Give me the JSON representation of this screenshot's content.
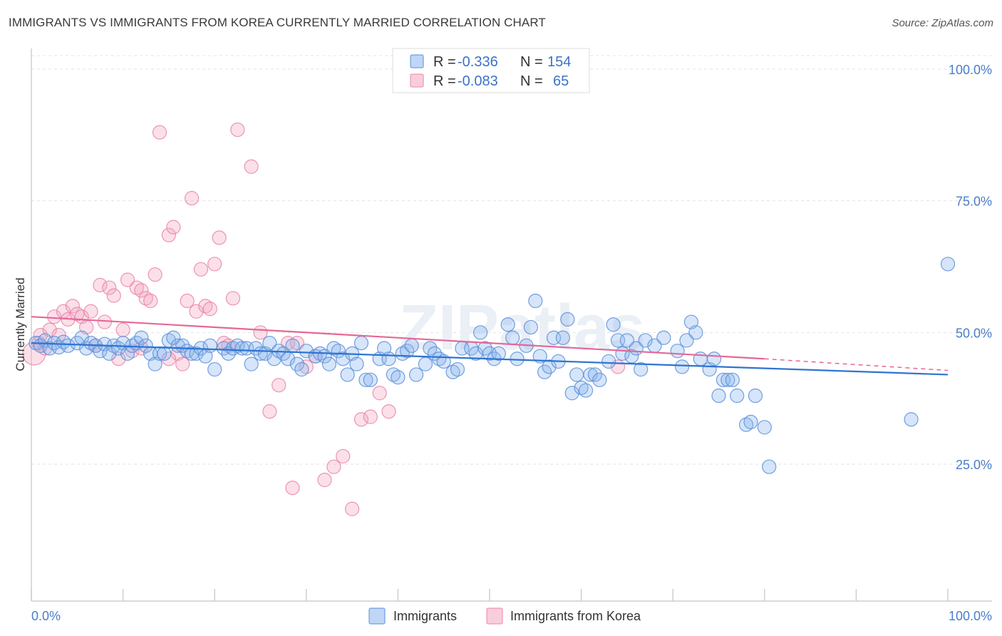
{
  "header": {
    "title": "IMMIGRANTS VS IMMIGRANTS FROM KOREA CURRENTLY MARRIED CORRELATION CHART",
    "source": "Source: ZipAtlas.com"
  },
  "chart_data": {
    "type": "scatter",
    "title": "IMMIGRANTS VS IMMIGRANTS FROM KOREA CURRENTLY MARRIED CORRELATION CHART",
    "xlabel": "",
    "ylabel": "Currently Married",
    "xlim": [
      0,
      100
    ],
    "ylim": [
      0,
      105
    ],
    "x_tick_labels": [
      "0.0%",
      "100.0%"
    ],
    "y_ticks": [
      25,
      50,
      75,
      100
    ],
    "y_tick_labels": [
      "25.0%",
      "50.0%",
      "75.0%",
      "100.0%"
    ],
    "grid": true,
    "watermark": "ZIPatlas",
    "legend_top": [
      {
        "r_label": "R =",
        "r_value": "-0.336",
        "n_label": "N =",
        "n_value": "154",
        "color": "#8ab4ef"
      },
      {
        "r_label": "R =",
        "r_value": "-0.083",
        "n_label": "N =",
        "n_value": "65",
        "color": "#f4a6c0"
      }
    ],
    "legend_bottom": [
      "Immigrants",
      "Immigrants from Korea"
    ],
    "series": [
      {
        "name": "Immigrants",
        "color": "#8ab4ef",
        "stroke": "#5b8fd8",
        "line_color": "#2f74d0",
        "trend": {
          "x0": 0,
          "y0": 48.0,
          "x1": 100,
          "y1": 42.0
        },
        "points": [
          [
            0.5,
            48
          ],
          [
            1,
            47.5
          ],
          [
            1.5,
            48.5
          ],
          [
            2,
            47
          ],
          [
            2.5,
            48
          ],
          [
            3,
            47.2
          ],
          [
            3.5,
            48.2
          ],
          [
            4,
            47.5
          ],
          [
            5,
            48
          ],
          [
            5.5,
            49
          ],
          [
            6,
            47
          ],
          [
            6.5,
            48
          ],
          [
            7,
            47.5
          ],
          [
            7.5,
            46.5
          ],
          [
            8,
            47.8
          ],
          [
            8.5,
            46
          ],
          [
            9,
            47.5
          ],
          [
            9.5,
            47
          ],
          [
            10,
            48
          ],
          [
            10.5,
            46
          ],
          [
            11,
            47.5
          ],
          [
            11.5,
            48
          ],
          [
            12,
            49
          ],
          [
            12.5,
            47.5
          ],
          [
            13,
            46
          ],
          [
            13.5,
            44
          ],
          [
            14,
            46
          ],
          [
            14.5,
            46
          ],
          [
            15,
            48.5
          ],
          [
            15.5,
            49
          ],
          [
            16,
            47.5
          ],
          [
            16.5,
            47.5
          ],
          [
            17,
            46.5
          ],
          [
            17.5,
            46
          ],
          [
            18,
            46
          ],
          [
            18.5,
            47
          ],
          [
            19,
            45.5
          ],
          [
            19.5,
            47.5
          ],
          [
            20,
            43
          ],
          [
            21,
            47
          ],
          [
            21.5,
            46
          ],
          [
            22,
            47
          ],
          [
            22.5,
            47.5
          ],
          [
            23,
            47
          ],
          [
            23.5,
            47
          ],
          [
            24,
            44
          ],
          [
            24.5,
            47
          ],
          [
            25,
            46
          ],
          [
            25.5,
            46
          ],
          [
            26,
            48
          ],
          [
            26.5,
            45
          ],
          [
            27,
            46.5
          ],
          [
            27.5,
            46
          ],
          [
            28,
            45
          ],
          [
            28.5,
            47.5
          ],
          [
            29,
            44
          ],
          [
            29.5,
            43
          ],
          [
            30,
            46.5
          ],
          [
            31,
            45.5
          ],
          [
            31.5,
            46
          ],
          [
            32,
            45.5
          ],
          [
            32.5,
            44
          ],
          [
            33,
            47
          ],
          [
            33.5,
            46.5
          ],
          [
            34,
            45
          ],
          [
            34.5,
            42
          ],
          [
            35,
            46
          ],
          [
            35.5,
            44
          ],
          [
            36,
            48
          ],
          [
            36.5,
            41
          ],
          [
            37,
            41
          ],
          [
            38,
            45
          ],
          [
            38.5,
            47
          ],
          [
            39,
            45
          ],
          [
            39.5,
            42
          ],
          [
            40,
            41.5
          ],
          [
            40.5,
            46
          ],
          [
            41,
            46.5
          ],
          [
            41.5,
            47.5
          ],
          [
            42,
            42
          ],
          [
            43,
            44
          ],
          [
            43.5,
            47
          ],
          [
            44,
            46
          ],
          [
            44.5,
            45
          ],
          [
            45,
            44.5
          ],
          [
            46,
            42.5
          ],
          [
            46.5,
            43
          ],
          [
            47,
            47
          ],
          [
            48,
            47
          ],
          [
            48.5,
            46
          ],
          [
            49,
            50
          ],
          [
            49.5,
            47
          ],
          [
            50,
            46
          ],
          [
            50.5,
            45
          ],
          [
            51,
            46
          ],
          [
            52,
            51.5
          ],
          [
            52.5,
            49
          ],
          [
            53,
            45
          ],
          [
            54,
            47.5
          ],
          [
            54.5,
            51
          ],
          [
            55,
            56
          ],
          [
            55.5,
            45.5
          ],
          [
            56,
            42.5
          ],
          [
            56.5,
            43.5
          ],
          [
            57,
            49
          ],
          [
            57.5,
            44.5
          ],
          [
            58,
            49
          ],
          [
            58.5,
            52.5
          ],
          [
            59,
            38.5
          ],
          [
            59.5,
            42
          ],
          [
            60,
            39.5
          ],
          [
            60.5,
            39
          ],
          [
            61,
            42
          ],
          [
            61.5,
            42
          ],
          [
            62,
            41
          ],
          [
            63,
            44.5
          ],
          [
            63.5,
            51.5
          ],
          [
            64,
            48.5
          ],
          [
            64.5,
            46
          ],
          [
            65,
            48.5
          ],
          [
            65.5,
            45.5
          ],
          [
            66,
            47
          ],
          [
            66.5,
            43
          ],
          [
            67,
            48.5
          ],
          [
            68,
            47.5
          ],
          [
            69,
            49
          ],
          [
            70.5,
            46.5
          ],
          [
            71,
            43.5
          ],
          [
            71.5,
            48.5
          ],
          [
            72,
            52
          ],
          [
            72.5,
            50
          ],
          [
            73,
            45
          ],
          [
            74,
            43
          ],
          [
            74.5,
            45
          ],
          [
            75,
            38
          ],
          [
            75.5,
            41
          ],
          [
            76,
            41
          ],
          [
            76.5,
            41
          ],
          [
            77,
            38
          ],
          [
            78,
            32.5
          ],
          [
            78.5,
            33
          ],
          [
            79,
            38
          ],
          [
            80,
            32
          ],
          [
            80.5,
            24.5
          ],
          [
            96,
            33.5
          ],
          [
            100,
            63
          ]
        ]
      },
      {
        "name": "Immigrants from Korea",
        "color": "#f4a6c0",
        "stroke": "#e984a8",
        "line_color": "#e4689a",
        "trend": {
          "x0": 0,
          "y0": 53.0,
          "x1": 80,
          "y1": 45.0
        },
        "trend_dashed": {
          "x0": 80,
          "y0": 45.0,
          "x1": 100,
          "y1": 42.8
        },
        "points": [
          [
            0.3,
            46
          ],
          [
            0.8,
            48
          ],
          [
            1,
            49.5
          ],
          [
            1.5,
            47
          ],
          [
            2,
            50.5
          ],
          [
            2.5,
            53
          ],
          [
            3,
            49.5
          ],
          [
            3.5,
            54
          ],
          [
            4,
            52.5
          ],
          [
            4.5,
            55
          ],
          [
            5,
            53.5
          ],
          [
            5.5,
            53
          ],
          [
            6,
            51
          ],
          [
            6.5,
            54
          ],
          [
            7,
            47.5
          ],
          [
            7.5,
            59
          ],
          [
            8,
            52
          ],
          [
            8.5,
            58.5
          ],
          [
            9,
            57
          ],
          [
            9.5,
            45
          ],
          [
            10,
            50.5
          ],
          [
            10.5,
            60
          ],
          [
            11,
            46.5
          ],
          [
            11.5,
            58.5
          ],
          [
            12,
            58
          ],
          [
            12.5,
            56.5
          ],
          [
            13,
            56
          ],
          [
            13.5,
            61
          ],
          [
            14,
            88
          ],
          [
            15,
            68.5
          ],
          [
            15.5,
            70
          ],
          [
            16,
            46
          ],
          [
            16.5,
            44
          ],
          [
            17,
            56
          ],
          [
            17.5,
            75.5
          ],
          [
            18,
            54
          ],
          [
            18.5,
            62
          ],
          [
            19,
            55
          ],
          [
            19.5,
            54.5
          ],
          [
            20,
            63
          ],
          [
            20.5,
            68
          ],
          [
            21,
            48
          ],
          [
            21.5,
            47.5
          ],
          [
            22,
            56.5
          ],
          [
            22.5,
            88.5
          ],
          [
            24,
            81.5
          ],
          [
            25,
            50
          ],
          [
            26,
            35
          ],
          [
            27,
            40
          ],
          [
            28,
            48
          ],
          [
            28.5,
            20.5
          ],
          [
            29,
            48
          ],
          [
            30,
            43.5
          ],
          [
            31,
            45.5
          ],
          [
            32,
            22
          ],
          [
            33,
            24.5
          ],
          [
            34,
            26.5
          ],
          [
            35,
            16.5
          ],
          [
            36,
            33.5
          ],
          [
            37,
            34
          ],
          [
            38,
            38.5
          ],
          [
            39,
            35
          ],
          [
            64,
            43.5
          ],
          [
            15,
            45
          ],
          [
            12,
            47
          ]
        ]
      }
    ]
  }
}
